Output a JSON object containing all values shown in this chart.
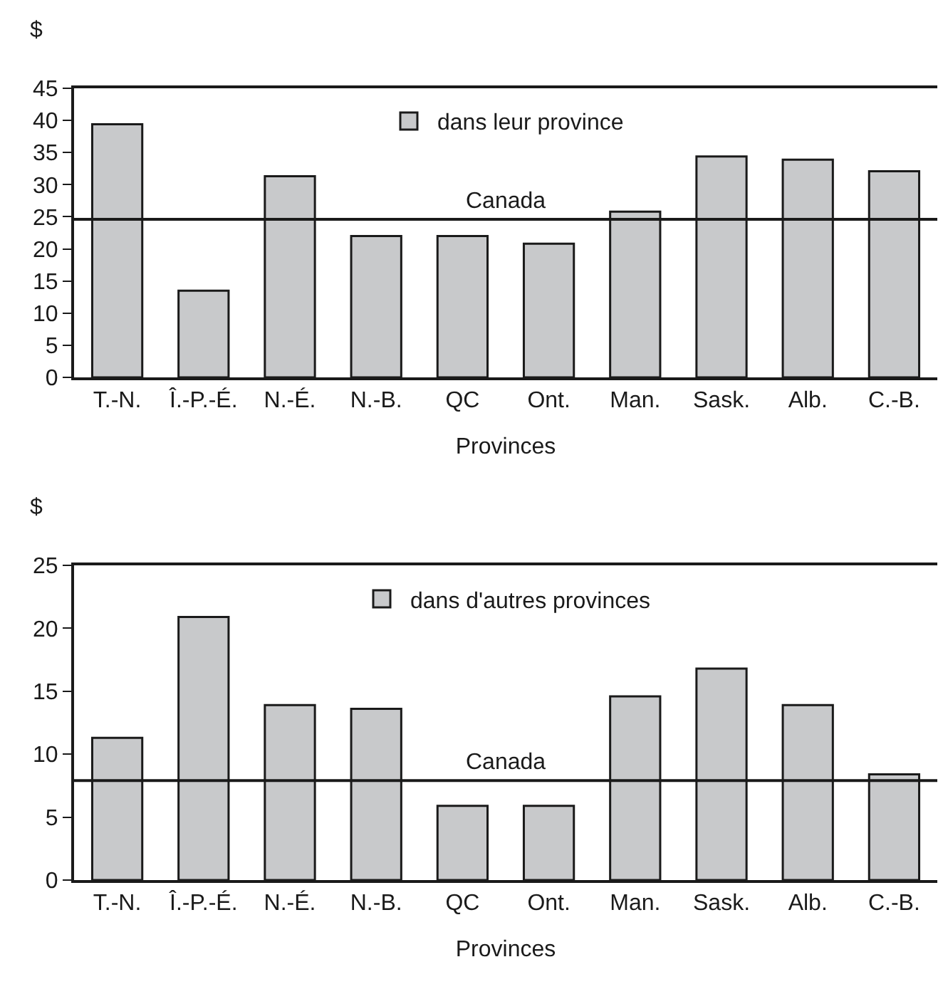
{
  "chart_data": [
    {
      "type": "bar",
      "ylabel": "$",
      "xlabel": "Provinces",
      "categories": [
        "T.-N.",
        "Î.-P.-É.",
        "N.-É.",
        "N.-B.",
        "QC",
        "Ont.",
        "Man.",
        "Sask.",
        "Alb.",
        "C.-B."
      ],
      "series": [
        {
          "name": "dans leur province",
          "color": "#c8c9cb",
          "values": [
            39.4,
            13.5,
            31.3,
            22.0,
            22.0,
            20.8,
            25.8,
            34.4,
            33.9,
            32.1
          ]
        }
      ],
      "ylim": [
        0,
        45
      ],
      "yticks": [
        0,
        5,
        10,
        15,
        20,
        25,
        30,
        35,
        40,
        45
      ],
      "grid": false,
      "legend": "top",
      "ref_lines": [
        {
          "axis": "y",
          "value": 24.6,
          "label": "Canada",
          "color": "#1a1a1a"
        }
      ]
    },
    {
      "type": "bar",
      "ylabel": "$",
      "xlabel": "Provinces",
      "categories": [
        "T.-N.",
        "Î.-P.-É.",
        "N.-É.",
        "N.-B.",
        "QC",
        "Ont.",
        "Man.",
        "Sask.",
        "Alb.",
        "C.-B."
      ],
      "series": [
        {
          "name": "dans d'autres provinces",
          "color": "#c8c9cb",
          "values": [
            11.3,
            20.9,
            13.9,
            13.6,
            5.9,
            5.9,
            14.6,
            16.8,
            13.9,
            8.4
          ]
        }
      ],
      "ylim": [
        0,
        25
      ],
      "yticks": [
        0,
        5,
        10,
        15,
        20,
        25
      ],
      "grid": false,
      "legend": "top",
      "ref_lines": [
        {
          "axis": "y",
          "value": 7.9,
          "label": "Canada",
          "color": "#1a1a1a"
        }
      ]
    }
  ]
}
